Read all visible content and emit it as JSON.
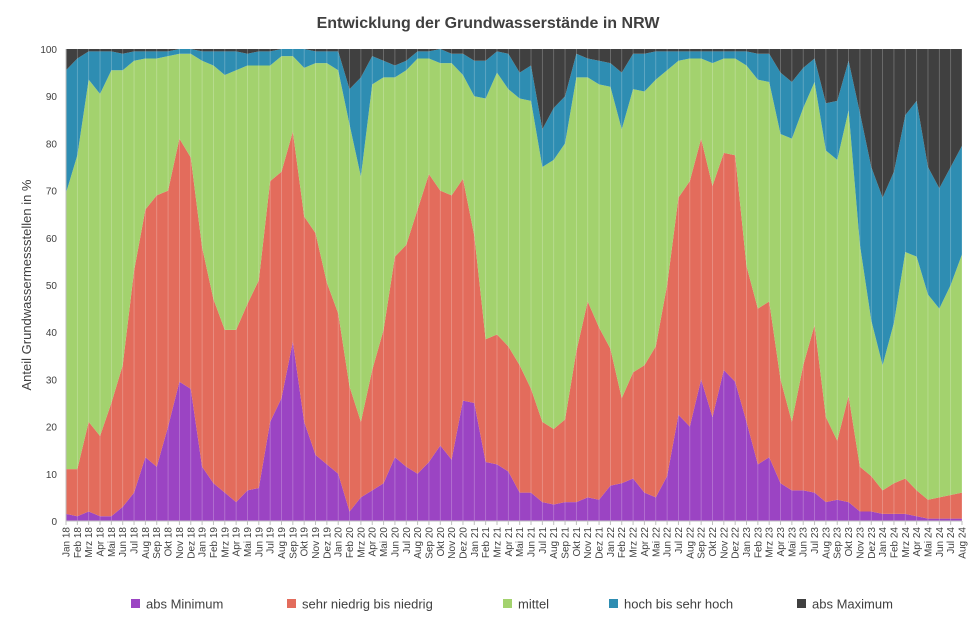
{
  "chart_data": {
    "type": "area",
    "stacked": true,
    "title": "Entwicklung der Grundwasserstände in NRW",
    "xlabel": "",
    "ylabel": "Anteil Grundwassermessstellen in %",
    "ylim": [
      0,
      100
    ],
    "yticks": [
      0,
      10,
      20,
      30,
      40,
      50,
      60,
      70,
      80,
      90,
      100
    ],
    "grid": false,
    "legend_position": "bottom",
    "categories": [
      "Jan 18",
      "Feb 18",
      "Mrz 18",
      "Apr 18",
      "Mai 18",
      "Jun 18",
      "Jul 18",
      "Aug 18",
      "Sep 18",
      "Okt 18",
      "Nov 18",
      "Dez 18",
      "Jan 19",
      "Feb 19",
      "Mrz 19",
      "Apr 19",
      "Mai 19",
      "Jun 19",
      "Jul 19",
      "Aug 19",
      "Sep 19",
      "Okt 19",
      "Nov 19",
      "Dez 19",
      "Jan 20",
      "Feb 20",
      "Mrz 20",
      "Apr 20",
      "Mai 20",
      "Jun 20",
      "Jul 20",
      "Aug 20",
      "Sep 20",
      "Okt 20",
      "Nov 20",
      "Dez 20",
      "Jan 21",
      "Feb 21",
      "Mrz 21",
      "Apr 21",
      "Mai 21",
      "Jun 21",
      "Jul 21",
      "Aug 21",
      "Sep 21",
      "Okt 21",
      "Nov 21",
      "Dez 21",
      "Jan 22",
      "Feb 22",
      "Mrz 22",
      "Apr 22",
      "Mai 22",
      "Jun 22",
      "Jul 22",
      "Aug 22",
      "Sep 22",
      "Okt 22",
      "Nov 22",
      "Dez 22",
      "Jan 23",
      "Feb 23",
      "Mrz 23",
      "Apr 23",
      "Mai 23",
      "Jun 23",
      "Jul 23",
      "Aug 23",
      "Sep 23",
      "Okt 23",
      "Nov 23",
      "Dez 23",
      "Jan 24",
      "Feb 24",
      "Mrz 24",
      "Apr 24",
      "Mai 24",
      "Jun 24",
      "Jul 24",
      "Aug 24"
    ],
    "cumulative_top": [
      [
        1.5,
        1,
        2,
        1,
        1,
        3,
        6,
        13.5,
        11.5,
        20,
        29.5,
        28,
        11.5,
        8,
        6,
        4,
        6.5,
        7,
        21,
        26,
        38,
        21,
        14,
        12,
        10,
        2,
        5,
        6.5,
        8,
        13.5,
        11.5,
        10,
        12.5,
        16,
        13,
        25.5,
        25,
        12.5,
        12,
        10.5,
        6,
        6,
        4,
        3.5,
        4,
        4,
        5,
        4.5,
        7.5,
        8,
        9,
        6,
        5,
        9.5,
        22.5,
        20,
        30,
        22,
        32,
        29.5,
        21,
        12,
        13.5,
        8,
        6.5,
        6.5,
        6,
        4,
        4.5,
        4,
        2,
        2,
        1.5,
        1.5,
        1.5,
        1,
        0.5,
        0.5,
        0.5,
        0.5
      ],
      [
        11,
        11,
        21,
        18,
        25,
        33,
        53,
        66,
        69,
        70,
        81,
        77,
        58,
        47,
        40.5,
        40.5,
        46,
        51,
        72,
        74,
        82.5,
        64.5,
        61,
        50.5,
        44,
        28.5,
        21,
        32,
        40.5,
        56,
        58.5,
        66,
        73.5,
        70,
        69,
        72.5,
        60.5,
        38.5,
        39.5,
        37,
        33,
        28,
        21,
        19.5,
        21.5,
        36,
        46.5,
        41,
        36.5,
        26,
        31.5,
        33,
        37,
        50,
        68.5,
        72,
        81,
        71,
        78,
        77.5,
        54,
        45,
        46.5,
        30,
        21,
        33,
        41.5,
        22,
        17,
        26.5,
        11.5,
        9.5,
        6.5,
        8,
        9,
        6.5,
        4.5,
        5,
        5.5,
        6
      ],
      [
        69.5,
        77.5,
        93.5,
        90.5,
        95.5,
        95.5,
        97.5,
        98,
        98,
        98.5,
        99,
        99,
        97.5,
        96.5,
        94.5,
        95.5,
        96.5,
        96.5,
        96.5,
        98.5,
        98.5,
        96,
        97,
        97,
        95.5,
        84,
        73,
        92.5,
        94,
        94,
        95.5,
        98,
        98,
        97,
        97,
        94.5,
        90,
        89.5,
        95,
        91.5,
        89.5,
        89,
        75,
        76.5,
        80,
        94,
        94,
        92.5,
        92,
        83,
        91.5,
        91,
        93.5,
        95.5,
        97.5,
        98,
        98,
        97,
        98,
        98,
        96.5,
        93.5,
        93,
        82,
        81,
        87.5,
        93,
        78.5,
        76.5,
        87,
        58.5,
        42.5,
        33,
        42,
        57,
        56,
        48,
        45,
        50,
        56.5
      ],
      [
        95.5,
        98,
        99.5,
        99.5,
        99.5,
        99,
        99.5,
        99.5,
        99.5,
        99.5,
        100,
        100,
        99.5,
        99.5,
        99.5,
        99.5,
        99,
        99.5,
        99.5,
        100,
        100,
        100,
        99.5,
        99.5,
        99.5,
        91.5,
        94,
        98.5,
        97.5,
        96.5,
        97.5,
        99.5,
        99.5,
        100,
        99,
        99,
        97.5,
        97.5,
        99.5,
        99,
        95,
        96.5,
        83,
        87.5,
        90,
        99,
        98,
        97.5,
        97,
        95,
        99,
        99,
        99.5,
        99.5,
        99.5,
        99.5,
        99.5,
        99.5,
        99.5,
        99.5,
        99.5,
        99,
        99,
        95,
        93,
        96,
        98,
        88.5,
        89,
        97.5,
        86.5,
        75,
        68.5,
        74,
        86,
        89,
        75,
        70.5,
        75,
        79.5
      ],
      [
        100,
        100,
        100,
        100,
        100,
        100,
        100,
        100,
        100,
        100,
        100,
        100,
        100,
        100,
        100,
        100,
        100,
        100,
        100,
        100,
        100,
        100,
        100,
        100,
        100,
        100,
        100,
        100,
        100,
        100,
        100,
        100,
        100,
        100,
        100,
        100,
        100,
        100,
        100,
        100,
        100,
        100,
        100,
        100,
        100,
        100,
        100,
        100,
        100,
        100,
        100,
        100,
        100,
        100,
        100,
        100,
        100,
        100,
        100,
        100,
        100,
        100,
        100,
        100,
        100,
        100,
        100,
        100,
        100,
        100,
        100,
        100,
        100,
        100,
        100,
        100,
        100,
        100,
        100,
        100
      ]
    ],
    "series": [
      {
        "name": "abs Minimum",
        "color": "#9b44c3"
      },
      {
        "name": "sehr niedrig bis niedrig",
        "color": "#e36c5c"
      },
      {
        "name": "mittel",
        "color": "#a3d26e"
      },
      {
        "name": "hoch bis sehr hoch",
        "color": "#2e8db2"
      },
      {
        "name": "abs Maximum",
        "color": "#404040"
      }
    ]
  }
}
